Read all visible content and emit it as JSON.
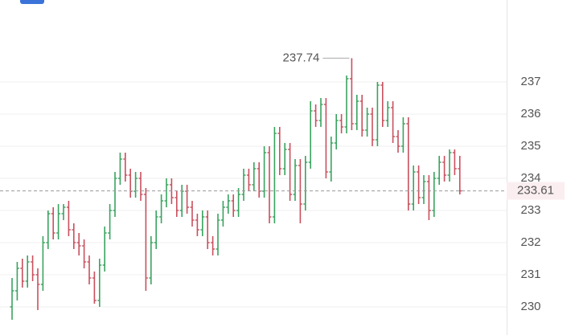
{
  "chart_data": {
    "type": "ohlc",
    "ylim": [
      229.125,
      239.55
    ],
    "yticks": [
      230,
      231,
      232,
      233,
      234,
      235,
      236,
      237
    ],
    "grid": true,
    "up_color": "#3aa35f",
    "down_color": "#c9505e",
    "max_label": 237.74,
    "last_price": 233.61,
    "ohlc": [
      [
        230.0,
        230.9,
        229.6,
        230.5
      ],
      [
        230.5,
        231.4,
        230.2,
        231.2
      ],
      [
        231.2,
        231.5,
        230.6,
        230.8
      ],
      [
        230.8,
        231.6,
        230.6,
        231.4
      ],
      [
        231.4,
        231.6,
        230.8,
        231.0
      ],
      [
        231.0,
        231.2,
        229.9,
        230.7
      ],
      [
        230.7,
        232.2,
        230.5,
        232.0
      ],
      [
        232.0,
        233.0,
        231.8,
        232.9
      ],
      [
        232.9,
        233.1,
        232.1,
        232.3
      ],
      [
        232.3,
        233.2,
        232.1,
        232.9
      ],
      [
        232.9,
        233.2,
        232.7,
        233.1
      ],
      [
        233.1,
        233.3,
        232.2,
        232.4
      ],
      [
        232.4,
        232.6,
        231.8,
        232.0
      ],
      [
        232.0,
        232.3,
        231.6,
        231.9
      ],
      [
        231.9,
        232.1,
        231.2,
        231.4
      ],
      [
        231.4,
        231.6,
        230.7,
        230.9
      ],
      [
        230.9,
        231.1,
        230.1,
        230.2
      ],
      [
        230.2,
        231.5,
        230.0,
        231.3
      ],
      [
        231.3,
        232.5,
        231.1,
        232.3
      ],
      [
        232.3,
        233.2,
        232.1,
        233.0
      ],
      [
        233.0,
        234.2,
        232.8,
        234.0
      ],
      [
        234.0,
        234.8,
        233.8,
        234.6
      ],
      [
        234.6,
        234.8,
        233.9,
        234.1
      ],
      [
        234.1,
        234.3,
        233.4,
        233.6
      ],
      [
        233.6,
        234.2,
        233.4,
        234.0
      ],
      [
        234.0,
        234.2,
        233.3,
        233.5
      ],
      [
        233.5,
        233.7,
        230.5,
        230.9
      ],
      [
        230.9,
        232.2,
        230.7,
        232.0
      ],
      [
        232.0,
        233.0,
        231.8,
        232.8
      ],
      [
        232.8,
        233.5,
        232.6,
        233.3
      ],
      [
        233.3,
        234.0,
        233.1,
        233.8
      ],
      [
        233.8,
        234.0,
        233.2,
        233.4
      ],
      [
        233.4,
        233.6,
        232.8,
        233.0
      ],
      [
        233.0,
        233.8,
        232.8,
        233.6
      ],
      [
        233.6,
        233.8,
        232.9,
        233.1
      ],
      [
        233.1,
        233.3,
        232.5,
        232.7
      ],
      [
        232.7,
        232.9,
        232.2,
        232.4
      ],
      [
        232.4,
        233.0,
        232.2,
        232.8
      ],
      [
        232.8,
        233.0,
        231.8,
        232.0
      ],
      [
        232.0,
        232.2,
        231.6,
        231.8
      ],
      [
        231.8,
        232.9,
        231.6,
        232.7
      ],
      [
        232.7,
        233.3,
        232.5,
        233.1
      ],
      [
        233.1,
        233.5,
        232.9,
        233.3
      ],
      [
        233.3,
        233.5,
        232.8,
        233.0
      ],
      [
        233.0,
        233.7,
        232.8,
        233.5
      ],
      [
        233.5,
        234.3,
        233.3,
        234.1
      ],
      [
        234.1,
        234.3,
        233.6,
        233.8
      ],
      [
        233.8,
        234.5,
        233.6,
        234.3
      ],
      [
        234.3,
        234.5,
        233.4,
        233.6
      ],
      [
        233.6,
        235.0,
        233.4,
        234.8
      ],
      [
        234.8,
        235.0,
        232.6,
        232.8
      ],
      [
        232.8,
        235.6,
        232.6,
        235.4
      ],
      [
        235.4,
        235.6,
        234.1,
        234.3
      ],
      [
        234.3,
        235.1,
        234.1,
        234.9
      ],
      [
        234.9,
        235.1,
        233.3,
        233.5
      ],
      [
        233.5,
        234.6,
        233.3,
        234.4
      ],
      [
        234.4,
        234.6,
        232.6,
        233.2
      ],
      [
        233.2,
        234.7,
        233.0,
        234.5
      ],
      [
        234.5,
        236.4,
        234.3,
        236.1
      ],
      [
        236.1,
        236.3,
        235.6,
        235.8
      ],
      [
        235.8,
        236.5,
        235.6,
        236.3
      ],
      [
        236.3,
        236.5,
        234.0,
        234.2
      ],
      [
        234.2,
        235.3,
        233.9,
        235.1
      ],
      [
        235.1,
        236.0,
        234.9,
        235.8
      ],
      [
        235.8,
        236.0,
        235.4,
        235.6
      ],
      [
        235.6,
        237.2,
        235.4,
        237.1
      ],
      [
        237.1,
        237.74,
        235.5,
        235.7
      ],
      [
        235.7,
        236.6,
        235.5,
        236.4
      ],
      [
        236.4,
        236.6,
        235.3,
        235.5
      ],
      [
        235.5,
        236.2,
        235.3,
        236.0
      ],
      [
        236.0,
        236.2,
        235.0,
        235.2
      ],
      [
        235.2,
        237.0,
        235.0,
        236.9
      ],
      [
        236.9,
        237.0,
        235.6,
        235.8
      ],
      [
        235.8,
        236.4,
        235.6,
        236.2
      ],
      [
        236.2,
        236.4,
        235.1,
        235.3
      ],
      [
        235.3,
        235.5,
        234.8,
        235.0
      ],
      [
        235.0,
        235.9,
        234.8,
        235.7
      ],
      [
        235.7,
        235.9,
        233.0,
        233.2
      ],
      [
        233.2,
        234.4,
        233.0,
        234.2
      ],
      [
        234.2,
        234.4,
        233.2,
        233.4
      ],
      [
        233.4,
        234.1,
        233.2,
        233.9
      ],
      [
        233.9,
        234.1,
        232.7,
        233.0
      ],
      [
        233.0,
        234.2,
        232.8,
        234.0
      ],
      [
        234.0,
        234.7,
        233.8,
        234.5
      ],
      [
        234.5,
        234.7,
        233.9,
        234.1
      ],
      [
        234.1,
        234.9,
        233.9,
        234.8
      ],
      [
        234.8,
        234.9,
        234.1,
        234.3
      ],
      [
        234.3,
        234.7,
        233.5,
        233.61
      ]
    ]
  }
}
